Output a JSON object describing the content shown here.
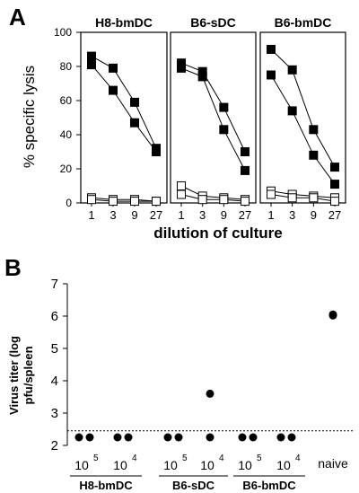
{
  "panel_a": {
    "letter": "A",
    "chart_data": {
      "type": "line",
      "ylabel": "% specific lysis",
      "xlabel": "dilution of culture",
      "ylim": [
        0,
        100
      ],
      "yticks": [
        "0",
        "20",
        "40",
        "60",
        "80",
        "100"
      ],
      "categories": [
        "1",
        "3",
        "9",
        "27"
      ],
      "subplots": [
        {
          "title": "H8-bmDC",
          "series": [
            {
              "marker": "filled",
              "values": [
                86,
                79,
                59,
                32
              ]
            },
            {
              "marker": "filled",
              "values": [
                81,
                66,
                47,
                30
              ]
            },
            {
              "marker": "open",
              "values": [
                3,
                2,
                2,
                1
              ]
            },
            {
              "marker": "open",
              "values": [
                2,
                1,
                1,
                1
              ]
            }
          ]
        },
        {
          "title": "B6-sDC",
          "series": [
            {
              "marker": "filled",
              "values": [
                82,
                77,
                56,
                30
              ]
            },
            {
              "marker": "filled",
              "values": [
                79,
                74,
                43,
                19
              ]
            },
            {
              "marker": "open",
              "values": [
                10,
                4,
                3,
                2
              ]
            },
            {
              "marker": "open",
              "values": [
                5,
                2,
                2,
                1
              ]
            }
          ]
        },
        {
          "title": "B6-bmDC",
          "series": [
            {
              "marker": "filled",
              "values": [
                90,
                78,
                43,
                21
              ]
            },
            {
              "marker": "filled",
              "values": [
                75,
                54,
                28,
                11
              ]
            },
            {
              "marker": "open",
              "values": [
                7,
                5,
                4,
                3
              ]
            },
            {
              "marker": "open",
              "values": [
                5,
                3,
                3,
                1
              ]
            }
          ]
        }
      ]
    }
  },
  "panel_b": {
    "letter": "B",
    "chart_data": {
      "type": "scatter",
      "ylabel_line1": "Virus titer (log",
      "ylabel_line2": "pfu/spleen",
      "ylim": [
        2,
        7
      ],
      "yticks": [
        "2",
        "3",
        "4",
        "5",
        "6",
        "7"
      ],
      "detection_limit": 2.45,
      "groups": [
        {
          "base": "10",
          "exp": "5",
          "points": [
            2.25,
            2.25
          ]
        },
        {
          "base": "10",
          "exp": "4",
          "points": [
            2.25,
            2.25
          ]
        },
        {
          "base": "10",
          "exp": "5",
          "points": [
            2.25,
            2.25
          ]
        },
        {
          "base": "10",
          "exp": "4",
          "points": [
            3.6,
            2.25
          ]
        },
        {
          "base": "10",
          "exp": "5",
          "points": [
            2.25,
            2.25
          ]
        },
        {
          "base": "10",
          "exp": "4",
          "points": [
            2.25,
            2.25
          ]
        },
        {
          "label": "naive",
          "points": [
            6.02,
            6.05
          ]
        }
      ],
      "group_labels": [
        "H8-bmDC",
        "B6-sDC",
        "B6-bmDC"
      ]
    }
  }
}
